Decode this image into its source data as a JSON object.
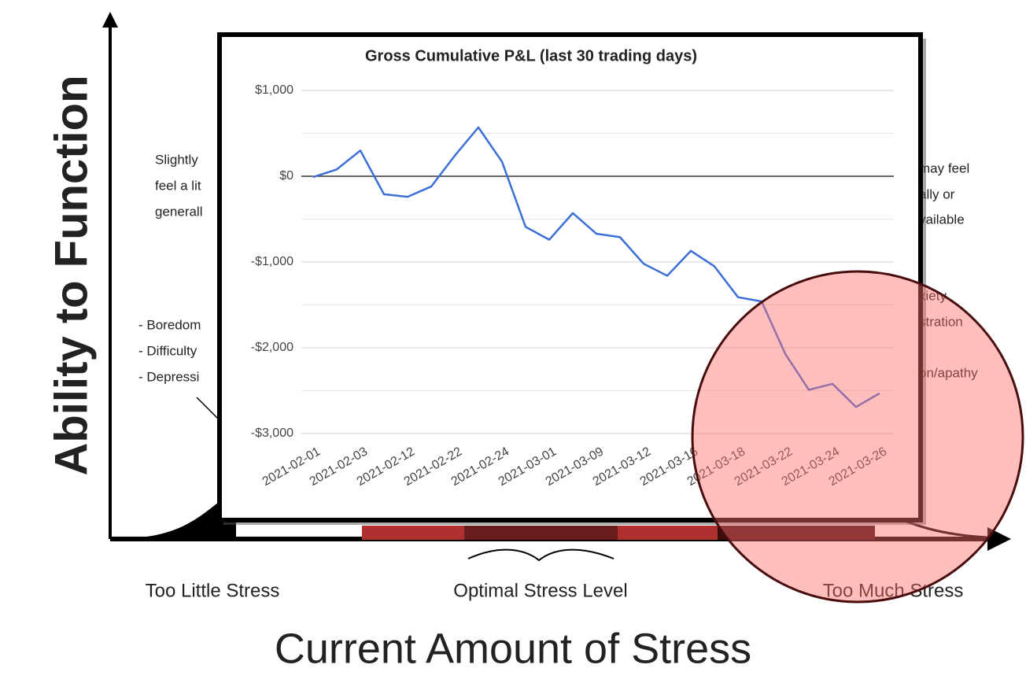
{
  "background": {
    "y_axis_label": "Ability to Function",
    "x_axis_label": "Current Amount of Stress",
    "zone_labels": [
      "Too Little Stress",
      "Optimal Stress Level",
      "Too Much Stress"
    ],
    "left_fragments": [
      "Slightly",
      "feel a lit",
      "generall",
      "- Boredom",
      "- Difficulty",
      "- Depressi"
    ],
    "right_fragments": [
      "may feel",
      "ally or",
      "vailable",
      "xiety",
      "stration",
      "on/apathy"
    ]
  },
  "chart_data": {
    "type": "line",
    "title": "Gross Cumulative P&L (last 30 trading days)",
    "categories": [
      "2021-02-01",
      null,
      "2021-02-03",
      null,
      "2021-02-12",
      null,
      "2021-02-22",
      null,
      "2021-02-24",
      null,
      "2021-03-01",
      null,
      "2021-03-09",
      null,
      "2021-03-12",
      null,
      "2021-03-16",
      null,
      "2021-03-18",
      null,
      "2021-03-22",
      null,
      "2021-03-24",
      null,
      "2021-03-26"
    ],
    "values": [
      -10,
      80,
      300,
      -210,
      -240,
      -120,
      240,
      570,
      170,
      -590,
      -740,
      -430,
      -670,
      -710,
      -1020,
      -1160,
      -870,
      -1050,
      -1410,
      -1460,
      -2070,
      -2490,
      -2420,
      -2690,
      -2530
    ],
    "color": "#3c6fd6",
    "ylim": [
      -3000,
      1000
    ],
    "yticks": [
      {
        "value": 1000,
        "label": "$1,000"
      },
      {
        "value": 0,
        "label": "$0"
      },
      {
        "value": -1000,
        "label": "-$1,000"
      },
      {
        "value": -2000,
        "label": "-$2,000"
      },
      {
        "value": -3000,
        "label": "-$3,000"
      }
    ],
    "minor_yticks": [
      500,
      -500,
      -1500,
      -2500
    ],
    "grid": true
  }
}
